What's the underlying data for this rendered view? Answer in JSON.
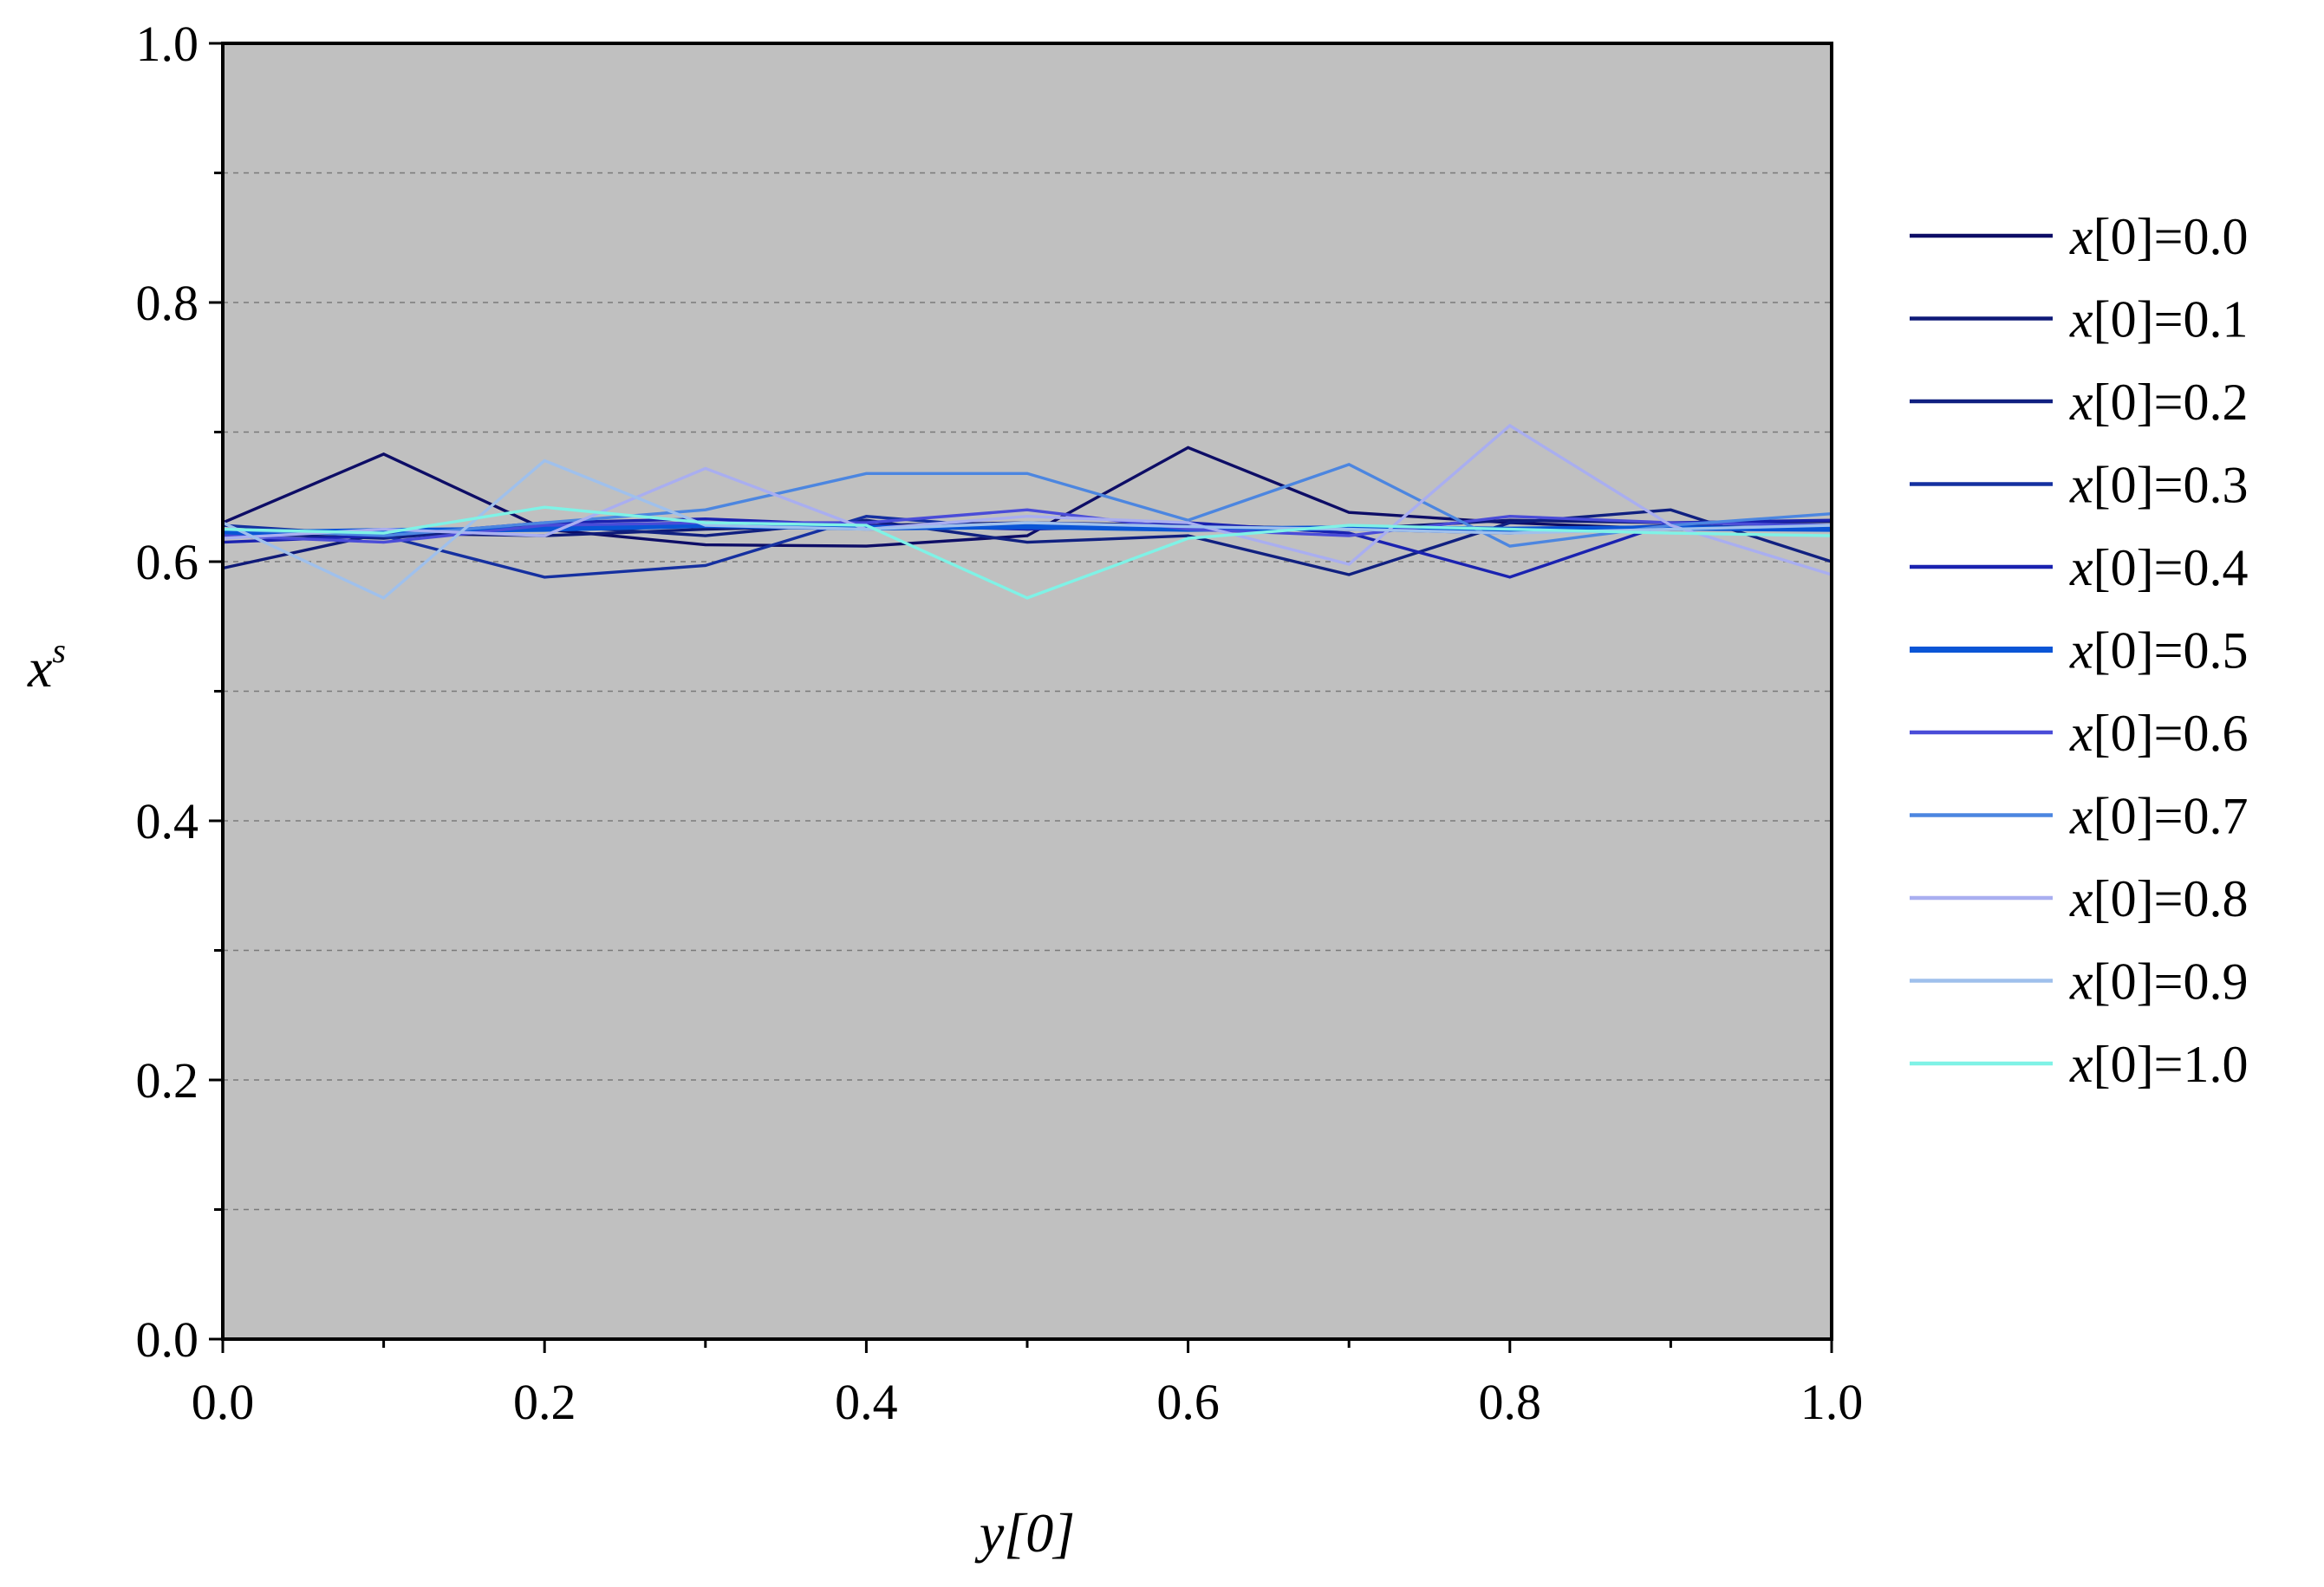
{
  "chart_data": {
    "type": "line",
    "xlabel": "y[0]",
    "ylabel": "x",
    "ylabel_superscript": "s",
    "xlim": [
      0.0,
      1.0
    ],
    "ylim": [
      0.0,
      1.0
    ],
    "x_ticks": [
      "0.0",
      "0.2",
      "0.4",
      "0.6",
      "0.8",
      "1.0"
    ],
    "y_ticks": [
      "0.0",
      "0.2",
      "0.4",
      "0.6",
      "0.8",
      "1.0"
    ],
    "grid": "horizontal dashed",
    "plot_background": "#c0c0c0",
    "legend_position": "right",
    "x": [
      0.0,
      0.1,
      0.2,
      0.3,
      0.4,
      0.5,
      0.6,
      0.7,
      0.8,
      0.9,
      1.0
    ],
    "series": [
      {
        "name": "x[0]=0.0",
        "color": "#0d0d66",
        "values": [
          0.63,
          0.683,
          0.625,
          0.613,
          0.612,
          0.62,
          0.688,
          0.638,
          0.63,
          0.625,
          0.628
        ]
      },
      {
        "name": "x[0]=0.1",
        "color": "#0f1a78",
        "values": [
          0.595,
          0.622,
          0.62,
          0.625,
          0.628,
          0.63,
          0.628,
          0.625,
          0.632,
          0.63,
          0.631
        ]
      },
      {
        "name": "x[0]=0.2",
        "color": "#102080",
        "values": [
          0.622,
          0.618,
          0.628,
          0.62,
          0.632,
          0.615,
          0.62,
          0.59,
          0.63,
          0.64,
          0.6
        ]
      },
      {
        "name": "x[0]=0.3",
        "color": "#1530a0",
        "values": [
          0.628,
          0.62,
          0.588,
          0.597,
          0.635,
          0.625,
          0.628,
          0.625,
          0.622,
          0.628,
          0.625
        ]
      },
      {
        "name": "x[0]=0.4",
        "color": "#1a22b0",
        "values": [
          0.615,
          0.62,
          0.63,
          0.633,
          0.628,
          0.625,
          0.63,
          0.622,
          0.588,
          0.63,
          0.632
        ]
      },
      {
        "name": "x[0]=0.5",
        "color": "#0a55d6",
        "values": [
          0.622,
          0.624,
          0.625,
          0.628,
          0.626,
          0.627,
          0.625,
          0.626,
          0.625,
          0.626,
          0.625
        ]
      },
      {
        "name": "x[0]=0.6",
        "color": "#4a4cd8",
        "values": [
          0.62,
          0.615,
          0.628,
          0.63,
          0.63,
          0.64,
          0.625,
          0.62,
          0.635,
          0.63,
          0.628
        ]
      },
      {
        "name": "x[0]=0.7",
        "color": "#4c86e0",
        "values": [
          0.625,
          0.62,
          0.63,
          0.64,
          0.668,
          0.668,
          0.632,
          0.675,
          0.612,
          0.628,
          0.637
        ]
      },
      {
        "name": "x[0]=0.8",
        "color": "#a9aef0",
        "values": [
          0.618,
          0.625,
          0.62,
          0.672,
          0.625,
          0.635,
          0.63,
          0.598,
          0.705,
          0.628,
          0.59
        ]
      },
      {
        "name": "x[0]=0.9",
        "color": "#9fc0ec",
        "values": [
          0.63,
          0.572,
          0.678,
          0.628,
          0.625,
          0.63,
          0.627,
          0.625,
          0.622,
          0.625,
          0.628
        ]
      },
      {
        "name": "x[0]=1.0",
        "color": "#7ff2e6",
        "values": [
          0.625,
          0.622,
          0.642,
          0.63,
          0.628,
          0.572,
          0.618,
          0.628,
          0.625,
          0.622,
          0.62
        ]
      }
    ]
  }
}
